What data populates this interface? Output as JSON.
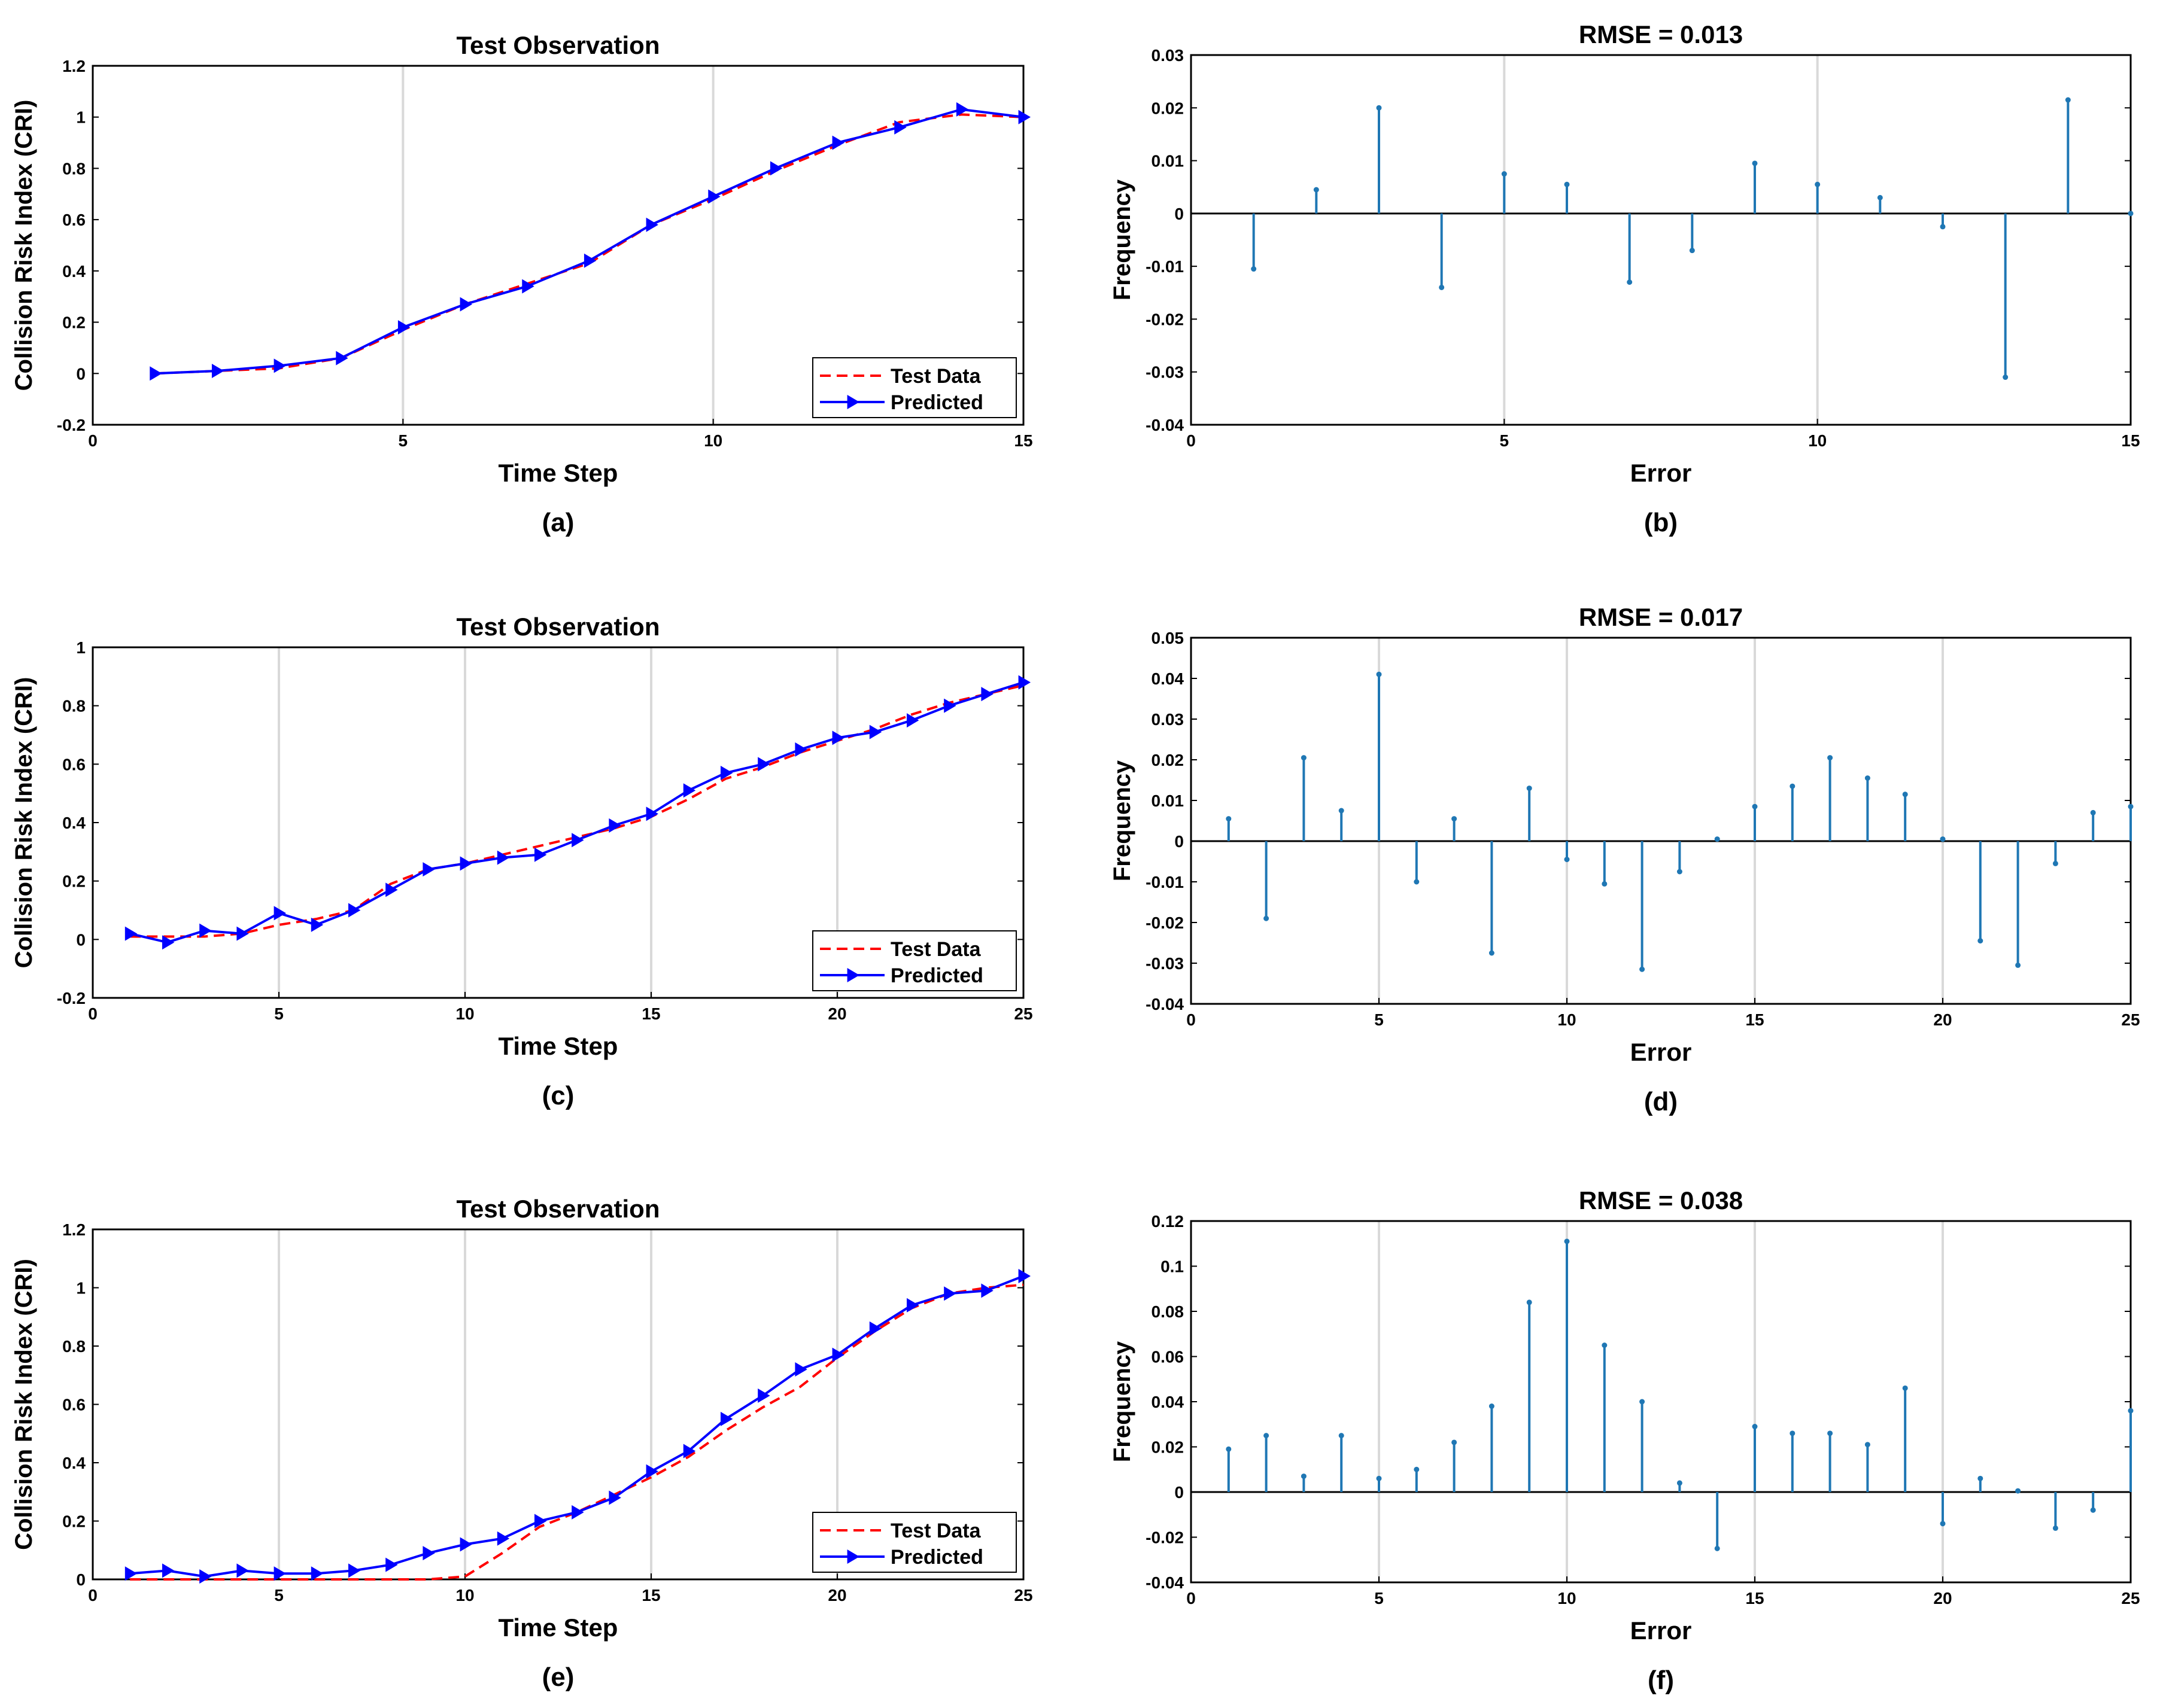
{
  "colors": {
    "test": "#ff0000",
    "pred": "#0000ff",
    "stem": "#1f77b4",
    "grid": "#d9d9d9"
  },
  "chart_data": [
    {
      "type": "line",
      "panel": "a",
      "caption": "(a)",
      "title": "Test Observation",
      "xlabel": "Time Step",
      "ylabel": "Collision Risk Index (CRI)",
      "xlim": [
        0,
        15
      ],
      "ylim": [
        -0.2,
        1.2
      ],
      "xticks": [
        "0",
        "5",
        "10",
        "15"
      ],
      "yticks": [
        "-0.2",
        "0",
        "0.2",
        "0.4",
        "0.6",
        "0.8",
        "1",
        "1.2"
      ],
      "legend_position": "bottom-right",
      "x": [
        1,
        2,
        3,
        4,
        5,
        6,
        7,
        8,
        9,
        10,
        11,
        12,
        13,
        14,
        15
      ],
      "series": [
        {
          "name": "Test Data",
          "values": [
            0.0,
            0.01,
            0.02,
            0.06,
            0.17,
            0.27,
            0.35,
            0.43,
            0.58,
            0.68,
            0.79,
            0.89,
            0.98,
            1.01,
            1.0
          ]
        },
        {
          "name": "Predicted",
          "values": [
            0.0,
            0.01,
            0.03,
            0.06,
            0.18,
            0.27,
            0.34,
            0.44,
            0.58,
            0.69,
            0.8,
            0.9,
            0.96,
            1.03,
            1.0
          ]
        }
      ]
    },
    {
      "type": "stem",
      "panel": "b",
      "caption": "(b)",
      "title": "RMSE = 0.013",
      "xlabel": "Error",
      "ylabel": "Frequency",
      "xlim": [
        0,
        15
      ],
      "ylim": [
        -0.04,
        0.03
      ],
      "xticks": [
        "0",
        "5",
        "10",
        "15"
      ],
      "yticks": [
        "-0.04",
        "-0.03",
        "-0.02",
        "-0.01",
        "0",
        "0.01",
        "0.02",
        "0.03"
      ],
      "x": [
        1,
        2,
        3,
        4,
        5,
        6,
        7,
        8,
        9,
        10,
        11,
        12,
        13,
        14,
        15
      ],
      "values": [
        -0.0105,
        0.0045,
        0.02,
        -0.014,
        0.0075,
        0.0055,
        -0.013,
        -0.007,
        0.0095,
        0.0055,
        0.003,
        -0.0025,
        -0.031,
        0.0215,
        0.0
      ]
    },
    {
      "type": "line",
      "panel": "c",
      "caption": "(c)",
      "title": "Test Observation",
      "xlabel": "Time Step",
      "ylabel": "Collision Risk Index (CRI)",
      "xlim": [
        0,
        25
      ],
      "ylim": [
        -0.2,
        1
      ],
      "xticks": [
        "0",
        "5",
        "10",
        "15",
        "20",
        "25"
      ],
      "yticks": [
        "-0.2",
        "0",
        "0.2",
        "0.4",
        "0.6",
        "0.8",
        "1"
      ],
      "legend_position": "bottom-right",
      "x": [
        1,
        2,
        3,
        4,
        5,
        6,
        7,
        8,
        9,
        10,
        11,
        12,
        13,
        14,
        15,
        16,
        17,
        18,
        19,
        20,
        21,
        22,
        23,
        24,
        25
      ],
      "series": [
        {
          "name": "Test Data",
          "values": [
            0.01,
            0.01,
            0.01,
            0.02,
            0.05,
            0.07,
            0.1,
            0.19,
            0.24,
            0.26,
            0.29,
            0.32,
            0.35,
            0.38,
            0.42,
            0.48,
            0.55,
            0.59,
            0.64,
            0.68,
            0.72,
            0.77,
            0.81,
            0.84,
            0.87
          ]
        },
        {
          "name": "Predicted",
          "values": [
            0.02,
            -0.01,
            0.03,
            0.02,
            0.09,
            0.05,
            0.1,
            0.17,
            0.24,
            0.26,
            0.28,
            0.29,
            0.34,
            0.39,
            0.43,
            0.51,
            0.57,
            0.6,
            0.65,
            0.69,
            0.71,
            0.75,
            0.8,
            0.84,
            0.88
          ]
        }
      ]
    },
    {
      "type": "stem",
      "panel": "d",
      "caption": "(d)",
      "title": "RMSE = 0.017",
      "xlabel": "Error",
      "ylabel": "Frequency",
      "xlim": [
        0,
        25
      ],
      "ylim": [
        -0.04,
        0.05
      ],
      "xticks": [
        "0",
        "5",
        "10",
        "15",
        "20",
        "25"
      ],
      "yticks": [
        "-0.04",
        "-0.03",
        "-0.02",
        "-0.01",
        "0",
        "0.01",
        "0.02",
        "0.03",
        "0.04",
        "0.05"
      ],
      "x": [
        1,
        2,
        3,
        4,
        5,
        6,
        7,
        8,
        9,
        10,
        11,
        12,
        13,
        14,
        15,
        16,
        17,
        18,
        19,
        20,
        21,
        22,
        23,
        24,
        25
      ],
      "values": [
        0.0055,
        -0.019,
        0.0205,
        0.0075,
        0.041,
        -0.01,
        0.0055,
        -0.0275,
        0.013,
        -0.0045,
        -0.0105,
        -0.0315,
        -0.0075,
        0.0005,
        0.0085,
        0.0135,
        0.0205,
        0.0155,
        0.0115,
        0.0005,
        -0.0245,
        -0.0305,
        -0.0055,
        0.007,
        0.0085
      ]
    },
    {
      "type": "line",
      "panel": "e",
      "caption": "(e)",
      "title": "Test Observation",
      "xlabel": "Time Step",
      "ylabel": "Collision Risk Index (CRI)",
      "xlim": [
        0,
        25
      ],
      "ylim": [
        0,
        1.2
      ],
      "xticks": [
        "0",
        "5",
        "10",
        "15",
        "20",
        "25"
      ],
      "yticks": [
        "0",
        "0.2",
        "0.4",
        "0.6",
        "0.8",
        "1",
        "1.2"
      ],
      "legend_position": "bottom-right",
      "x": [
        1,
        2,
        3,
        4,
        5,
        6,
        7,
        8,
        9,
        10,
        11,
        12,
        13,
        14,
        15,
        16,
        17,
        18,
        19,
        20,
        21,
        22,
        23,
        24,
        25
      ],
      "series": [
        {
          "name": "Test Data",
          "values": [
            0.0,
            0.0,
            0.0,
            0.0,
            0.0,
            0.0,
            0.0,
            0.0,
            0.0,
            0.01,
            0.09,
            0.18,
            0.23,
            0.29,
            0.35,
            0.42,
            0.51,
            0.59,
            0.66,
            0.76,
            0.85,
            0.93,
            0.98,
            1.0,
            1.01
          ]
        },
        {
          "name": "Predicted",
          "values": [
            0.02,
            0.03,
            0.01,
            0.03,
            0.02,
            0.02,
            0.03,
            0.05,
            0.09,
            0.12,
            0.14,
            0.2,
            0.23,
            0.28,
            0.37,
            0.44,
            0.55,
            0.63,
            0.72,
            0.77,
            0.86,
            0.94,
            0.98,
            0.99,
            1.04
          ]
        }
      ]
    },
    {
      "type": "stem",
      "panel": "f",
      "caption": "(f)",
      "title": "RMSE = 0.038",
      "xlabel": "Error",
      "ylabel": "Frequency",
      "xlim": [
        0,
        25
      ],
      "ylim": [
        -0.04,
        0.12
      ],
      "xticks": [
        "0",
        "5",
        "10",
        "15",
        "20",
        "25"
      ],
      "yticks": [
        "-0.04",
        "-0.02",
        "0",
        "0.02",
        "0.04",
        "0.06",
        "0.08",
        "0.1",
        "0.12"
      ],
      "x": [
        1,
        2,
        3,
        4,
        5,
        6,
        7,
        8,
        9,
        10,
        11,
        12,
        13,
        14,
        15,
        16,
        17,
        18,
        19,
        20,
        21,
        22,
        23,
        24,
        25
      ],
      "values": [
        0.019,
        0.025,
        0.007,
        0.025,
        0.006,
        0.01,
        0.022,
        0.038,
        0.084,
        0.111,
        0.065,
        0.04,
        0.004,
        -0.025,
        0.029,
        0.026,
        0.026,
        0.021,
        0.046,
        -0.014,
        0.006,
        0.0005,
        -0.016,
        -0.008,
        0.036
      ]
    }
  ]
}
